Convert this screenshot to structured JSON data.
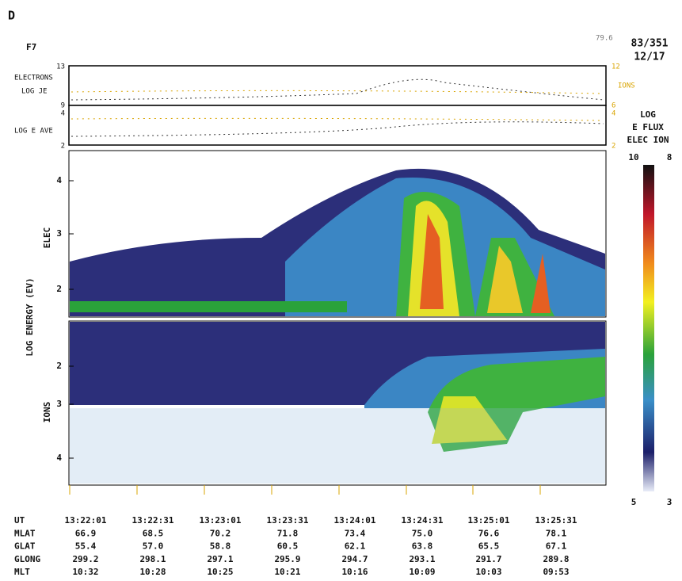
{
  "figure": {
    "panel_label": "D",
    "satellite": "F7",
    "corner_value": "79.6",
    "day_of_year": "83/351",
    "date": "12/17"
  },
  "flux_panel": {
    "electrons_label": "ELECTRONS",
    "log_je_label": "LOG JE",
    "log_e_ave_label": "LOG E AVE",
    "ions_label": "IONS",
    "left_ticks": [
      "13",
      "9",
      "4",
      "2"
    ],
    "right_ticks": [
      "12",
      "6",
      "4",
      "2"
    ]
  },
  "spectrogram": {
    "y_axis_label": "LOG ENERGY (EV)",
    "elec_label": "ELEC",
    "ions_label": "IONS",
    "elec_ticks": [
      "4",
      "3",
      "2"
    ],
    "ion_ticks": [
      "2",
      "3",
      "4"
    ]
  },
  "colorbar": {
    "title_1": "LOG",
    "title_2": "E FLUX",
    "title_3": "ELEC ION",
    "top_elec": "10",
    "top_ion": "8",
    "bottom_elec": "5",
    "bottom_ion": "3"
  },
  "table": {
    "rows": [
      {
        "label": "UT",
        "values": [
          "13:22:01",
          "13:22:31",
          "13:23:01",
          "13:23:31",
          "13:24:01",
          "13:24:31",
          "13:25:01",
          "13:25:31"
        ]
      },
      {
        "label": "MLAT",
        "values": [
          "66.9",
          "68.5",
          "70.2",
          "71.8",
          "73.4",
          "75.0",
          "76.6",
          "78.1"
        ]
      },
      {
        "label": "GLAT",
        "values": [
          "55.4",
          "57.0",
          "58.8",
          "60.5",
          "62.1",
          "63.8",
          "65.5",
          "67.1"
        ]
      },
      {
        "label": "GLONG",
        "values": [
          "299.2",
          "298.1",
          "297.1",
          "295.9",
          "294.7",
          "293.1",
          "291.7",
          "289.8"
        ]
      },
      {
        "label": "MLT",
        "values": [
          "10:32",
          "10:28",
          "10:25",
          "10:21",
          "10:16",
          "10:09",
          "10:03",
          "09:53"
        ]
      }
    ]
  }
}
